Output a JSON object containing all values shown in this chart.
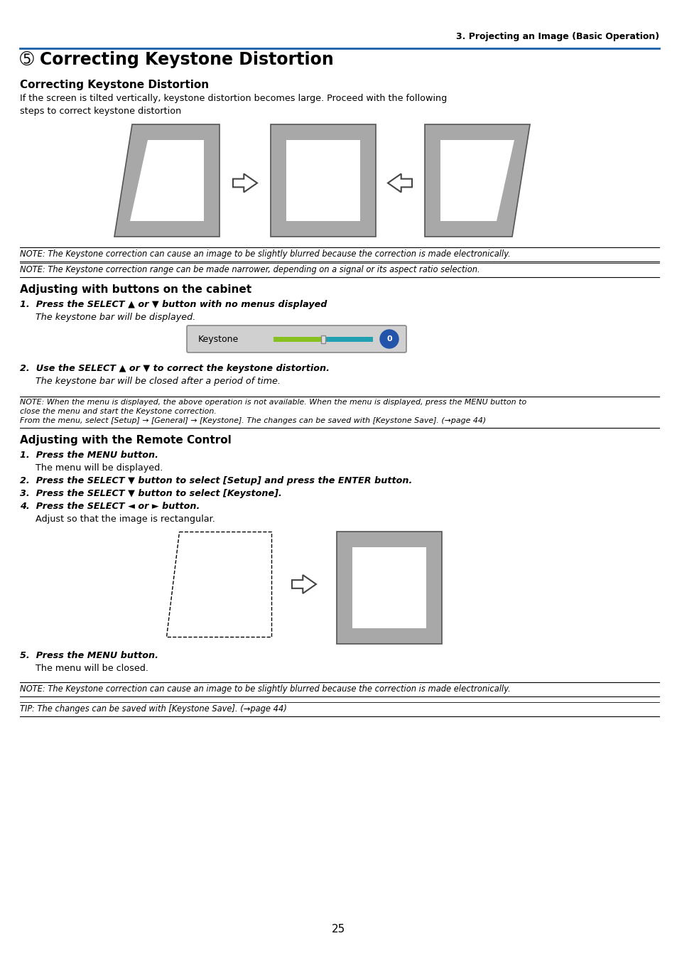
{
  "page_header": "3. Projecting an Image (Basic Operation)",
  "main_title": "➄ Correcting Keystone Distortion",
  "section1_title": "Correcting Keystone Distortion",
  "section1_body_line1": "If the screen is tilted vertically, keystone distortion becomes large. Proceed with the following",
  "section1_body_line2": "steps to correct keystone distortion",
  "note1": "NOTE: The Keystone correction can cause an image to be slightly blurred because the correction is made electronically.",
  "note2": "NOTE: The Keystone correction range can be made narrower, depending on a signal or its aspect ratio selection.",
  "section2_title": "Adjusting with buttons on the cabinet",
  "step1_bold": "1.  Press the SELECT ▲ or ▼ button with no menus displayed",
  "step1_italic": "The keystone bar will be displayed.",
  "keystone_label": "Keystone",
  "step2_bold": "2.  Use the SELECT ▲ or ▼ to correct the keystone distortion.",
  "step2_italic": "The keystone bar will be closed after a period of time.",
  "note3_line1": "NOTE: When the menu is displayed, the above operation is not available. When the menu is displayed, press the MENU button to",
  "note3_line2": "close the menu and start the Keystone correction.",
  "note3_line3": "From the menu, select [Setup] → [General] → [Keystone]. The changes can be saved with [Keystone Save]. (→page 44)",
  "section3_title": "Adjusting with the Remote Control",
  "rc_step1_bold": "1.  Press the MENU button.",
  "rc_step1_italic": "The menu will be displayed.",
  "rc_step2_bold": "2.  Press the SELECT ▼ button to select [Setup] and press the ENTER button.",
  "rc_step3_bold": "3.  Press the SELECT ▼ button to select [Keystone].",
  "rc_step4_bold": "4.  Press the SELECT ◄ or ► button.",
  "rc_step4_italic": "Adjust so that the image is rectangular.",
  "rc_step5_bold": "5.  Press the MENU button.",
  "rc_step5_italic": "The menu will be closed.",
  "note4": "NOTE: The Keystone correction can cause an image to be slightly blurred because the correction is made electronically.",
  "tip1": "TIP: The changes can be saved with [Keystone Save]. (→page 44)",
  "page_number": "25",
  "bg_color": "#ffffff",
  "header_line_color": "#1a5fa8",
  "gray_fill": "#a8a8a8",
  "white_fill": "#ffffff"
}
